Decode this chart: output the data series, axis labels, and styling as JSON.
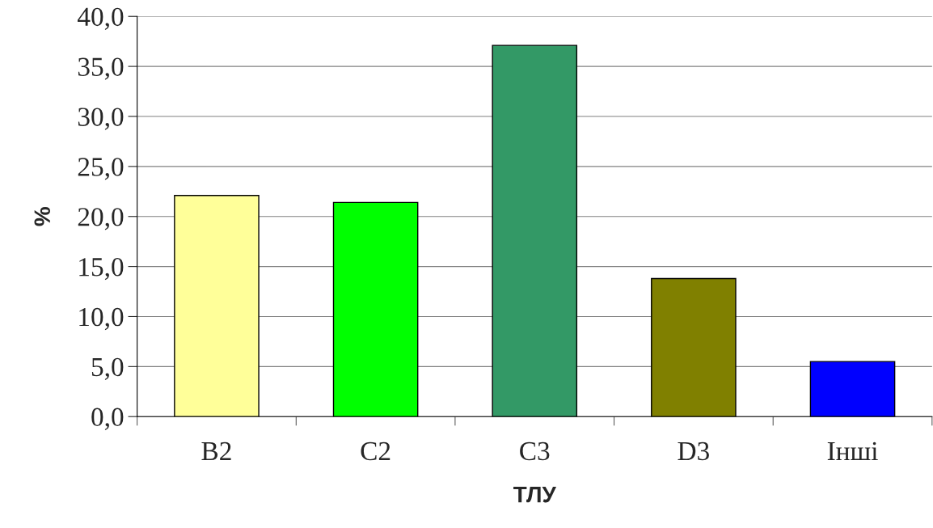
{
  "chart_data": {
    "type": "bar",
    "xlabel": "ТЛУ",
    "ylabel": "%",
    "categories": [
      "B2",
      "C2",
      "C3",
      "D3",
      "Інші"
    ],
    "values": [
      22.1,
      21.4,
      37.1,
      13.8,
      5.5
    ],
    "colors": [
      "#ffff99",
      "#00ff00",
      "#339966",
      "#808000",
      "#0000ff"
    ],
    "ylim": [
      0,
      40
    ],
    "yticks": [
      {
        "value": 0,
        "label": "0,0"
      },
      {
        "value": 5,
        "label": "5,0"
      },
      {
        "value": 10,
        "label": "10,0"
      },
      {
        "value": 15,
        "label": "15,0"
      },
      {
        "value": 20,
        "label": "20,0"
      },
      {
        "value": 25,
        "label": "25,0"
      },
      {
        "value": 30,
        "label": "30,0"
      },
      {
        "value": 35,
        "label": "35,0"
      },
      {
        "value": 40,
        "label": "40,0"
      }
    ],
    "grid": "y",
    "legend": false
  }
}
